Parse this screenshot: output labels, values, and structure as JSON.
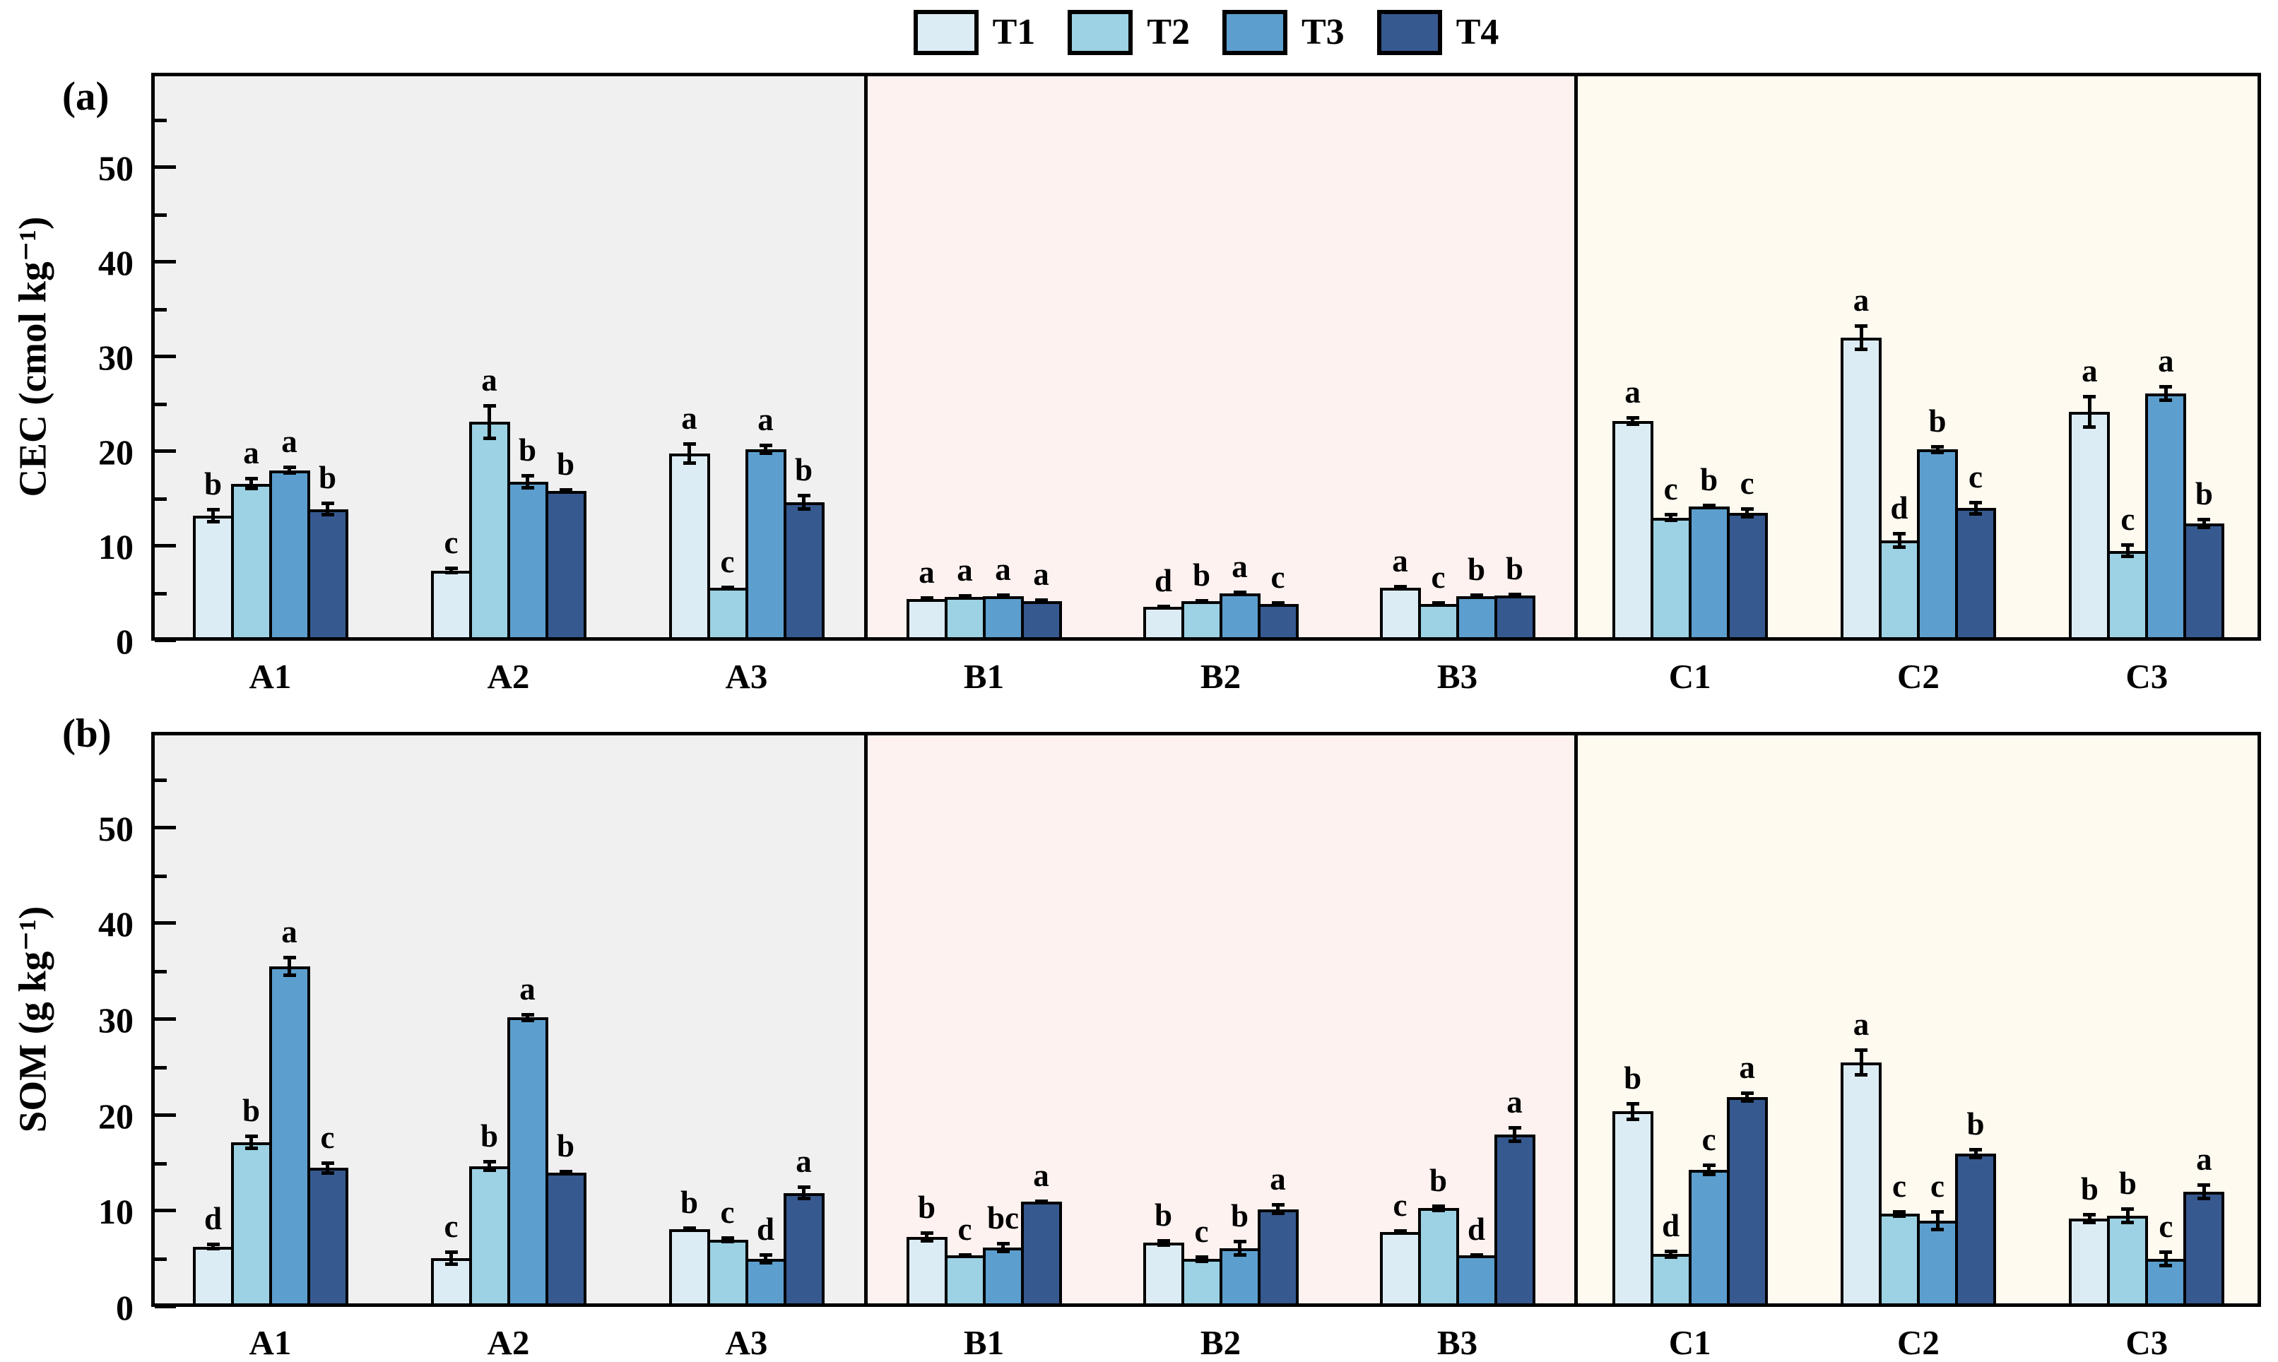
{
  "legend": {
    "items": [
      {
        "label": "T1",
        "color": "#dcecf4"
      },
      {
        "label": "T2",
        "color": "#9cd2e3"
      },
      {
        "label": "T3",
        "color": "#5c9fce"
      },
      {
        "label": "T4",
        "color": "#36598f"
      }
    ]
  },
  "chart_data": [
    {
      "type": "bar",
      "tag": "(a)",
      "ylabel": "CEC (cmol kg⁻¹)",
      "ylim": [
        0,
        60
      ],
      "yticks": [
        0,
        10,
        20,
        30,
        40,
        50
      ],
      "minor_ticks": [
        5,
        15,
        25,
        35,
        45,
        55
      ],
      "legend_position": "top-center",
      "grid": false,
      "categories": [
        "A1",
        "A2",
        "A3",
        "B1",
        "B2",
        "B3",
        "C1",
        "C2",
        "C3"
      ],
      "regions": [
        {
          "categories": [
            "A1",
            "A2",
            "A3"
          ],
          "bg": "#f0f0f0"
        },
        {
          "categories": [
            "B1",
            "B2",
            "B3"
          ],
          "bg": "#fdf2ef"
        },
        {
          "categories": [
            "C1",
            "C2",
            "C3"
          ],
          "bg": "#fffaf0"
        }
      ],
      "series": [
        {
          "name": "T1",
          "color": "#dcecf4",
          "values": [
            13.2,
            7.4,
            19.8,
            4.4,
            3.6,
            5.6,
            23.2,
            32.0,
            24.2
          ],
          "errors": [
            0.8,
            0.4,
            1.2,
            0.3,
            0.2,
            0.3,
            0.5,
            1.4,
            1.8
          ],
          "letters": [
            "b",
            "c",
            "a",
            "a",
            "d",
            "a",
            "a",
            "a",
            "a"
          ]
        },
        {
          "name": "T2",
          "color": "#9cd2e3",
          "values": [
            16.6,
            23.1,
            5.6,
            4.6,
            4.2,
            3.9,
            13.0,
            10.6,
            9.5
          ],
          "errors": [
            0.7,
            1.9,
            0.2,
            0.3,
            0.2,
            0.3,
            0.5,
            0.9,
            0.8
          ],
          "letters": [
            "a",
            "a",
            "c",
            "a",
            "b",
            "c",
            "c",
            "d",
            "c"
          ]
        },
        {
          "name": "T3",
          "color": "#5c9fce",
          "values": [
            18.0,
            16.8,
            20.2,
            4.7,
            5.0,
            4.7,
            14.2,
            20.2,
            26.1
          ],
          "errors": [
            0.5,
            0.8,
            0.6,
            0.3,
            0.3,
            0.3,
            0.3,
            0.5,
            0.9
          ],
          "letters": [
            "a",
            "b",
            "a",
            "a",
            "a",
            "b",
            "b",
            "b",
            "a"
          ]
        },
        {
          "name": "T4",
          "color": "#36598f",
          "values": [
            13.9,
            15.8,
            14.6,
            4.2,
            3.9,
            4.8,
            13.5,
            14.0,
            12.4
          ],
          "errors": [
            0.8,
            0.3,
            0.9,
            0.3,
            0.3,
            0.3,
            0.6,
            0.8,
            0.6
          ],
          "letters": [
            "b",
            "b",
            "b",
            "a",
            "c",
            "b",
            "c",
            "c",
            "b"
          ]
        }
      ]
    },
    {
      "type": "bar",
      "tag": "(b)",
      "ylabel": "SOM (g kg⁻¹)",
      "ylim": [
        0,
        60
      ],
      "yticks": [
        0,
        10,
        20,
        30,
        40,
        50
      ],
      "minor_ticks": [
        5,
        15,
        25,
        35,
        45,
        55
      ],
      "grid": false,
      "categories": [
        "A1",
        "A2",
        "A3",
        "B1",
        "B2",
        "B3",
        "C1",
        "C2",
        "C3"
      ],
      "regions": [
        {
          "categories": [
            "A1",
            "A2",
            "A3"
          ],
          "bg": "#f0f0f0"
        },
        {
          "categories": [
            "B1",
            "B2",
            "B3"
          ],
          "bg": "#fdf2ef"
        },
        {
          "categories": [
            "C1",
            "C2",
            "C3"
          ],
          "bg": "#fffaf0"
        }
      ],
      "series": [
        {
          "name": "T1",
          "color": "#dcecf4",
          "values": [
            6.3,
            5.1,
            8.1,
            7.3,
            6.7,
            7.8,
            20.4,
            25.5,
            9.2
          ],
          "errors": [
            0.4,
            0.8,
            0.3,
            0.6,
            0.4,
            0.3,
            1.0,
            1.5,
            0.6
          ],
          "letters": [
            "d",
            "c",
            "b",
            "b",
            "b",
            "c",
            "b",
            "a",
            "b"
          ]
        },
        {
          "name": "T2",
          "color": "#9cd2e3",
          "values": [
            17.2,
            14.7,
            7.0,
            5.4,
            5.0,
            10.3,
            5.5,
            9.7,
            9.5
          ],
          "errors": [
            0.8,
            0.6,
            0.4,
            0.2,
            0.4,
            0.4,
            0.5,
            0.4,
            0.9
          ],
          "letters": [
            "b",
            "b",
            "c",
            "c",
            "c",
            "b",
            "d",
            "c",
            "b"
          ]
        },
        {
          "name": "T3",
          "color": "#5c9fce",
          "values": [
            35.5,
            30.2,
            5.0,
            6.2,
            6.1,
            5.4,
            14.3,
            9.0,
            5.0
          ],
          "errors": [
            1.1,
            0.5,
            0.6,
            0.6,
            0.9,
            0.2,
            0.7,
            1.1,
            0.9
          ],
          "letters": [
            "a",
            "a",
            "d",
            "bc",
            "b",
            "d",
            "c",
            "c",
            "c"
          ]
        },
        {
          "name": "T4",
          "color": "#36598f",
          "values": [
            14.5,
            14.0,
            11.9,
            11.0,
            10.2,
            18.0,
            21.9,
            16.0,
            12.0
          ],
          "errors": [
            0.7,
            0.3,
            0.8,
            0.2,
            0.6,
            0.9,
            0.6,
            0.6,
            0.9
          ],
          "letters": [
            "c",
            "b",
            "a",
            "a",
            "a",
            "a",
            "a",
            "b",
            "a"
          ]
        }
      ]
    }
  ]
}
